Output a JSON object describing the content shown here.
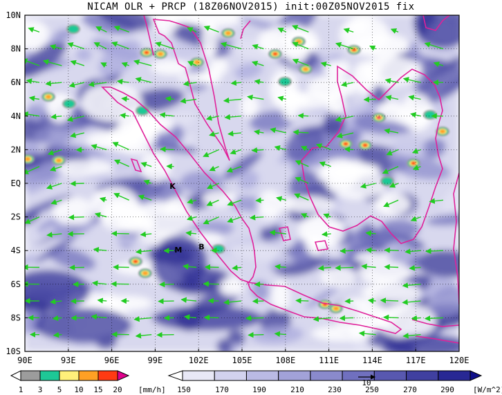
{
  "title": "NICAM OLR + PRCP (18Z06NOV2015) init:00Z05NOV2015 fix",
  "lat_labels": [
    "10N",
    "8N",
    "6N",
    "4N",
    "2N",
    "EQ",
    "2S",
    "4S",
    "6S",
    "8S",
    "10S"
  ],
  "lon_labels": [
    "90E",
    "93E",
    "96E",
    "99E",
    "102E",
    "105E",
    "108E",
    "111E",
    "114E",
    "117E",
    "120E"
  ],
  "map_extent": {
    "lon": [
      90,
      120
    ],
    "lat": [
      -10,
      10
    ]
  },
  "station_markers": [
    {
      "text": "K",
      "lon": 100.2,
      "lat": -0.2
    },
    {
      "text": "M",
      "lon": 100.6,
      "lat": -4.0
    },
    {
      "text": "B",
      "lon": 102.2,
      "lat": -3.8
    }
  ],
  "prcp_colorbar": {
    "labels": [
      "1",
      "3",
      "5",
      "10",
      "15",
      "20"
    ],
    "unit": "[mm/h]",
    "colors": [
      "#ffffff",
      "#9c9c9c",
      "#1ec896",
      "#fff07a",
      "#ffa024",
      "#ff3a12",
      "#e0008c"
    ]
  },
  "olr_colorbar": {
    "labels": [
      "150",
      "170",
      "190",
      "210",
      "230",
      "250",
      "270",
      "290"
    ],
    "unit": "[W/m^2]",
    "colors": [
      "#ffffff",
      "#e8e8f6",
      "#d2d2ee",
      "#babae4",
      "#a2a2d8",
      "#8a8acc",
      "#7070bf",
      "#5858b0",
      "#4040a0",
      "#282894",
      "#10108a"
    ]
  },
  "vector_reference": "10",
  "colors": {
    "coast": "#e0209a",
    "wind": "#22cc22",
    "grid": "#000000"
  }
}
